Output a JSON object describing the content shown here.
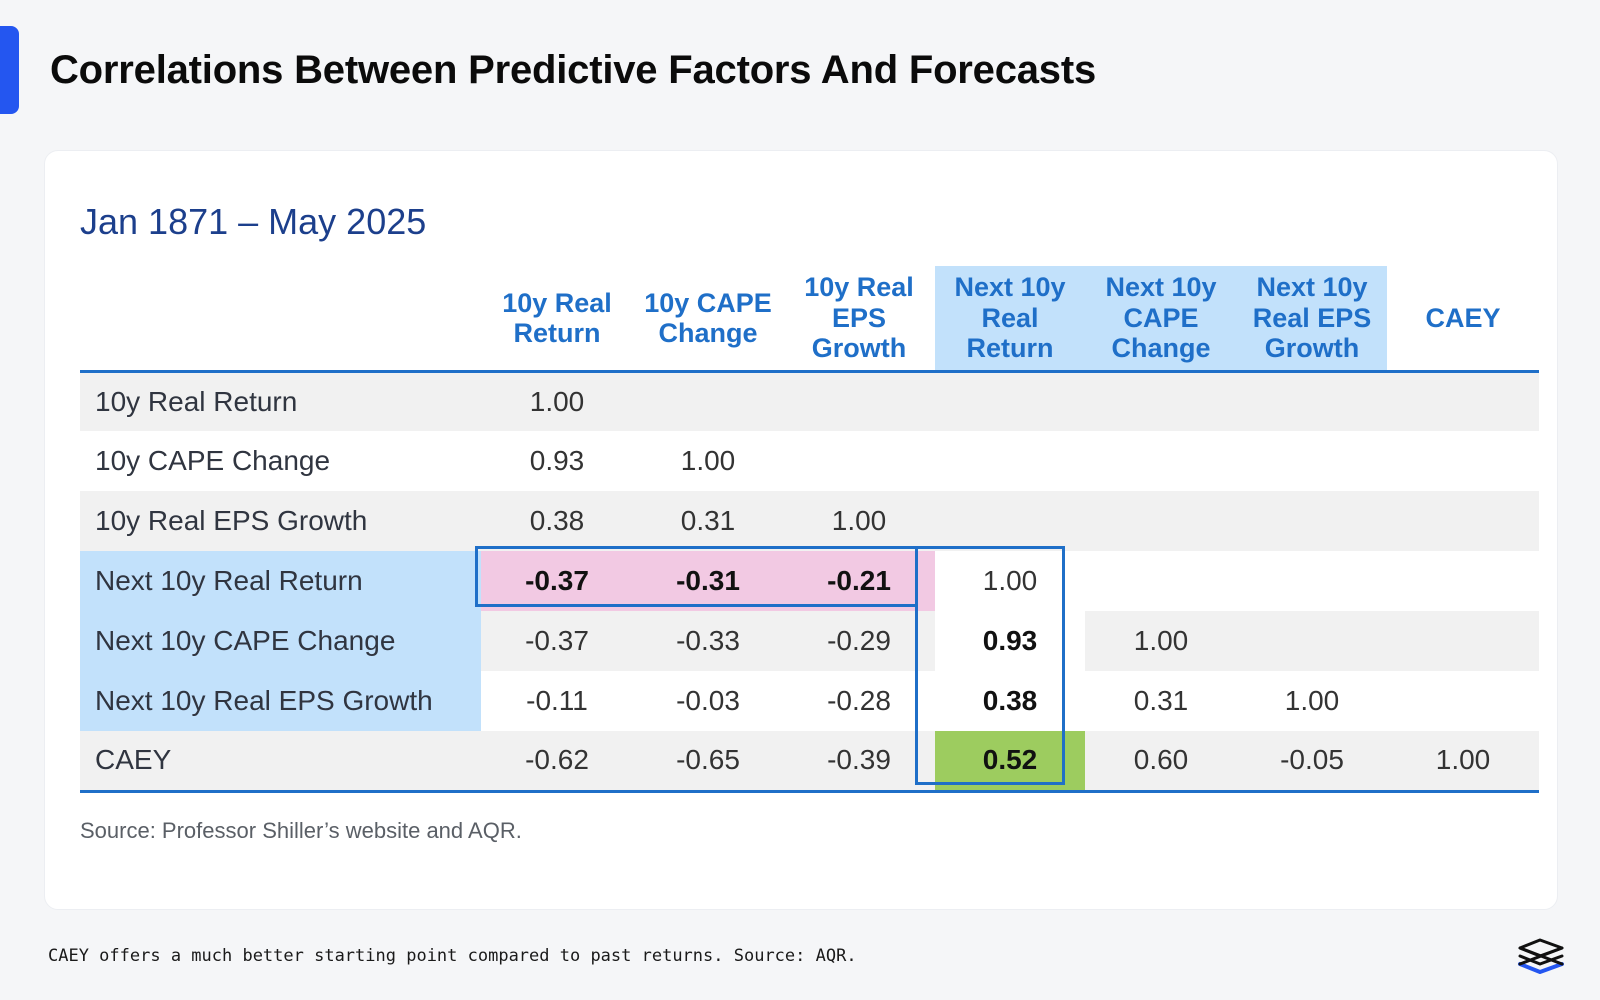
{
  "page": {
    "title": "Correlations Between Predictive Factors And Forecasts",
    "caption": "CAEY offers a much better starting point compared to past returns. Source: AQR."
  },
  "card": {
    "subtitle": "Jan 1871 – May 2025",
    "source": "Source: Professor Shiller’s website and AQR."
  },
  "colors": {
    "accent": "#2456f0",
    "header_text": "#1f6fc8",
    "header_highlight": "#c2e1fb",
    "pink_highlight": "#f2c9e3",
    "green_highlight": "#9dcc5f"
  },
  "chart_data": {
    "type": "table",
    "title": "Jan 1871 – May 2025",
    "columns": [
      "10y Real Return",
      "10y CAPE Change",
      "10y Real EPS Growth",
      "Next 10y Real Return",
      "Next 10y CAPE Change",
      "Next 10y Real EPS Growth",
      "CAEY"
    ],
    "column_headers": [
      [
        "10y Real",
        "Return"
      ],
      [
        "10y CAPE",
        "Change"
      ],
      [
        "10y Real",
        "EPS",
        "Growth"
      ],
      [
        "Next 10y",
        "Real",
        "Return"
      ],
      [
        "Next 10y",
        "CAPE",
        "Change"
      ],
      [
        "Next 10y",
        "Real EPS",
        "Growth"
      ],
      [
        "CAEY"
      ]
    ],
    "rows": [
      {
        "label": "10y Real Return",
        "values": [
          "1.00",
          "",
          "",
          "",
          "",
          "",
          ""
        ]
      },
      {
        "label": "10y CAPE Change",
        "values": [
          "0.93",
          "1.00",
          "",
          "",
          "",
          "",
          ""
        ]
      },
      {
        "label": "10y Real EPS Growth",
        "values": [
          "0.38",
          "0.31",
          "1.00",
          "",
          "",
          "",
          ""
        ]
      },
      {
        "label": "Next 10y Real Return",
        "values": [
          "-0.37",
          "-0.31",
          "-0.21",
          "1.00",
          "",
          "",
          ""
        ]
      },
      {
        "label": "Next 10y CAPE Change",
        "values": [
          "-0.37",
          "-0.33",
          "-0.29",
          "0.93",
          "1.00",
          "",
          ""
        ]
      },
      {
        "label": "Next 10y Real EPS Growth",
        "values": [
          "-0.11",
          "-0.03",
          "-0.28",
          "0.38",
          "0.31",
          "1.00",
          ""
        ]
      },
      {
        "label": "CAEY",
        "values": [
          "-0.62",
          "-0.65",
          "-0.39",
          "0.52",
          "0.60",
          "-0.05",
          "1.00"
        ]
      }
    ],
    "source": "Source: Professor Shiller’s website and AQR."
  }
}
